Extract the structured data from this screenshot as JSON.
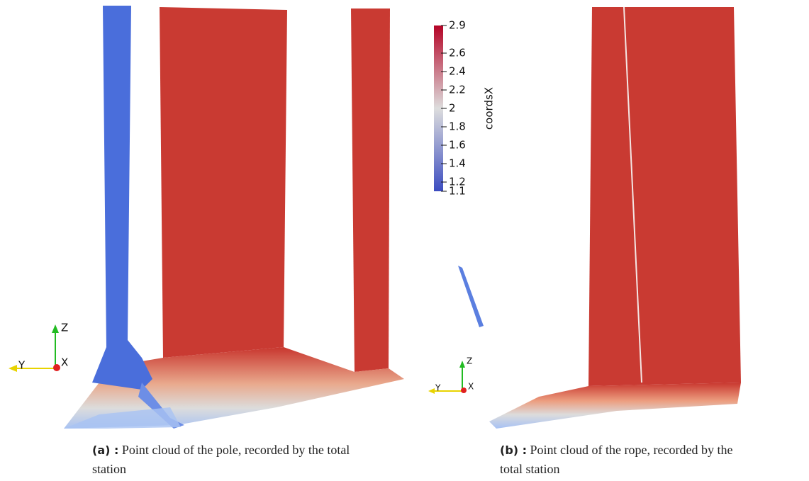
{
  "figure": {
    "colorbar": {
      "label": "coordsX",
      "lim": [
        1.1,
        2.9
      ],
      "ticks": [
        2.9,
        2.6,
        2.4,
        2.2,
        2,
        1.8,
        1.6,
        1.4,
        1.2,
        1.1
      ]
    },
    "panels": [
      {
        "axes": {
          "z": "Z",
          "y": "Y",
          "x": "X"
        },
        "caption": {
          "tag": "(a) :",
          "text": "Point cloud of the pole, recorded by the total station"
        }
      },
      {
        "axes": {
          "z": "Z",
          "y": "Y",
          "x": "X"
        },
        "caption": {
          "tag": "(b) :",
          "text": "Point cloud of the rope, recorded by the total station"
        }
      }
    ]
  }
}
